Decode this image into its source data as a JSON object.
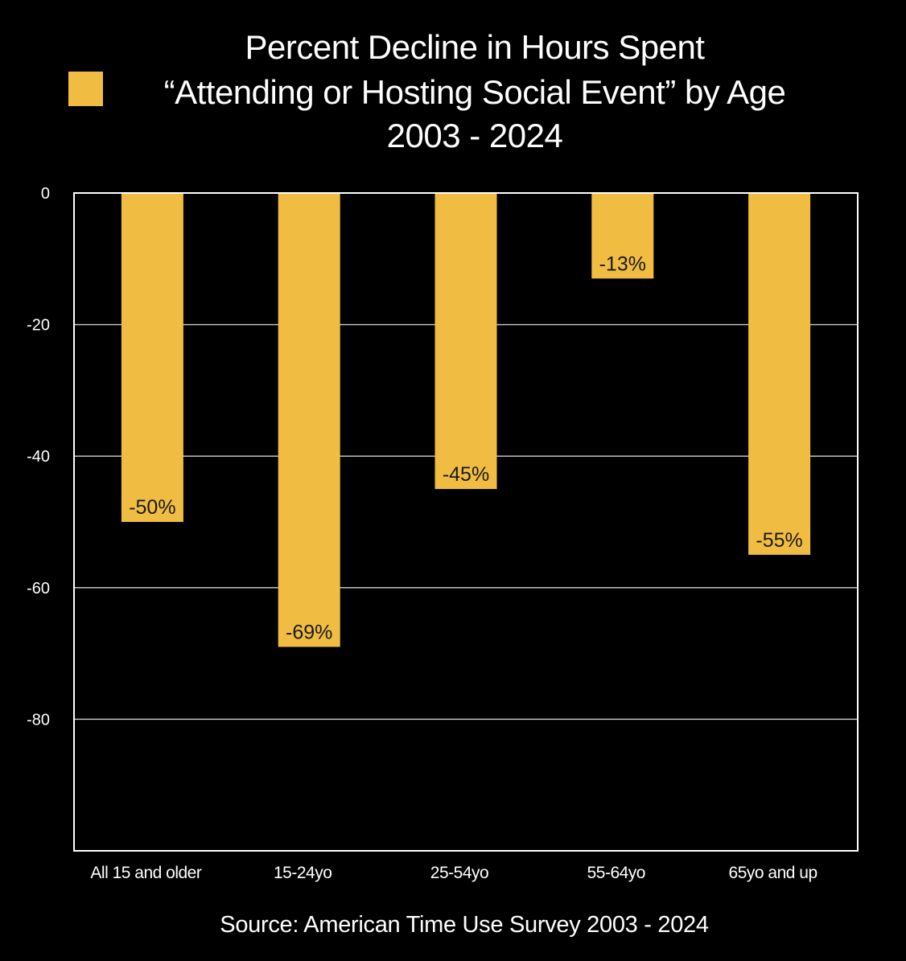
{
  "chart_data": {
    "type": "bar",
    "title_lines": [
      "Percent Decline in Hours Spent",
      "“Attending or Hosting Social Event” by Age",
      "2003 - 2024"
    ],
    "legend": {
      "placement": "top-left",
      "series_color": "#F0BD42"
    },
    "categories": [
      "All 15 and older",
      "15-24yo",
      "25-54yo",
      "55-64yo",
      "65yo and up"
    ],
    "values": [
      -50,
      -69,
      -45,
      -13,
      -55
    ],
    "data_labels": [
      "-50%",
      "-69%",
      "-45%",
      "-13%",
      "-55%"
    ],
    "ylim": [
      -100,
      0
    ],
    "yticks": [
      0,
      -20,
      -40,
      -60,
      -80
    ],
    "ytick_labels": [
      "0",
      "-20",
      "-40",
      "-60",
      "-80"
    ],
    "grid": true,
    "xlabel": "",
    "ylabel": "",
    "source": "Source: American Time Use Survey 2003 - 2024",
    "colors": {
      "background": "#000000",
      "bar": "#F0BD42",
      "text": "#FFFFFF",
      "label_text": "#1A1A1A",
      "grid": "#BFBFBF"
    }
  }
}
